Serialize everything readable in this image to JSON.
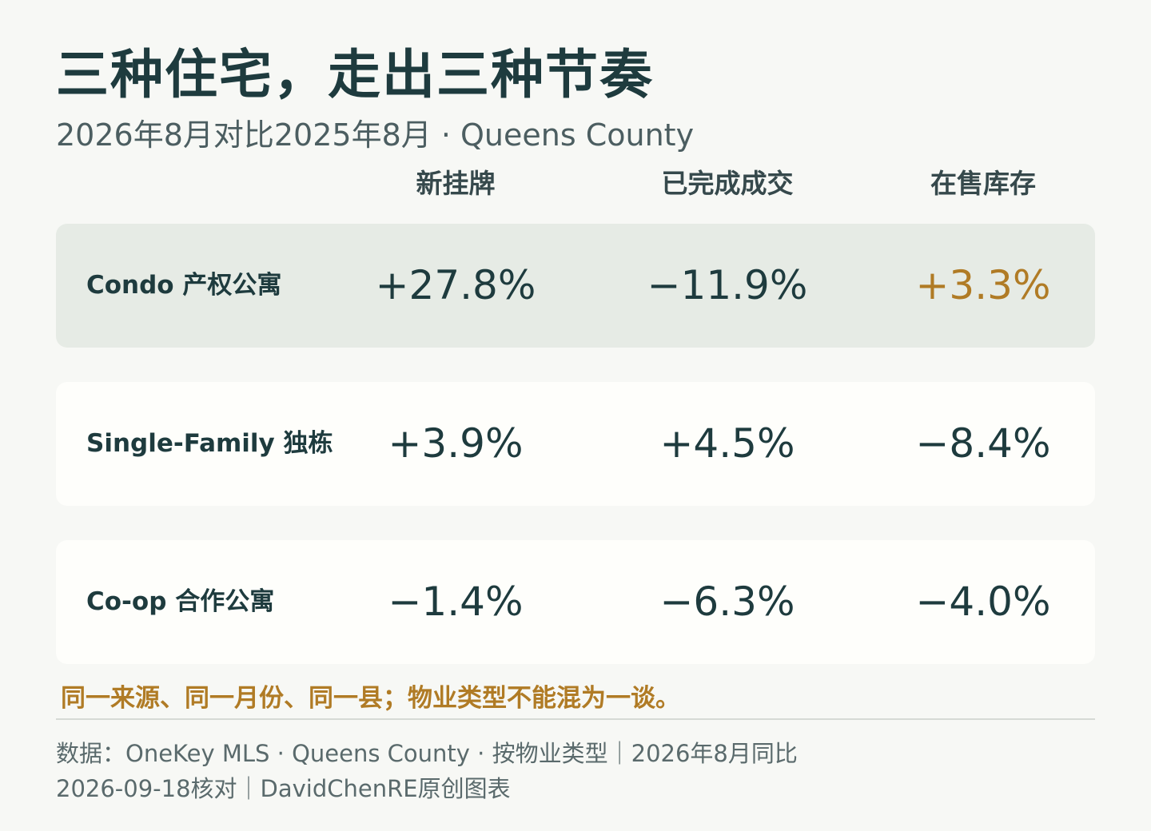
{
  "title": "三种住宅，走出三种节奏",
  "subtitle": "2026年8月对比2025年8月 · Queens County",
  "colors": {
    "accent": "#b07b25",
    "text": "#1e3b3e",
    "highlight_row": "#e6ebe5",
    "row_bg": "#fefefb",
    "background": "#f7f8f5"
  },
  "chart_data": {
    "type": "table",
    "columns": [
      "新挂牌",
      "已完成成交",
      "在售库存"
    ],
    "rows": [
      {
        "label": "Condo 产权公寓",
        "values": [
          "+27.8%",
          "−11.9%",
          "+3.3%"
        ],
        "highlighted": true,
        "accent_cells": [
          2
        ]
      },
      {
        "label": "Single-Family 独栋",
        "values": [
          "+3.9%",
          "+4.5%",
          "−8.4%"
        ],
        "highlighted": false,
        "accent_cells": []
      },
      {
        "label": "Co-op 合作公寓",
        "values": [
          "−1.4%",
          "−6.3%",
          "−4.0%"
        ],
        "highlighted": false,
        "accent_cells": []
      }
    ]
  },
  "note": "同一来源、同一月份、同一县；物业类型不能混为一谈。",
  "source": {
    "line1": "数据：OneKey MLS · Queens County · 按物业类型｜2026年8月同比",
    "line2": "2026-09-18核对｜DavidChenRE原创图表"
  }
}
